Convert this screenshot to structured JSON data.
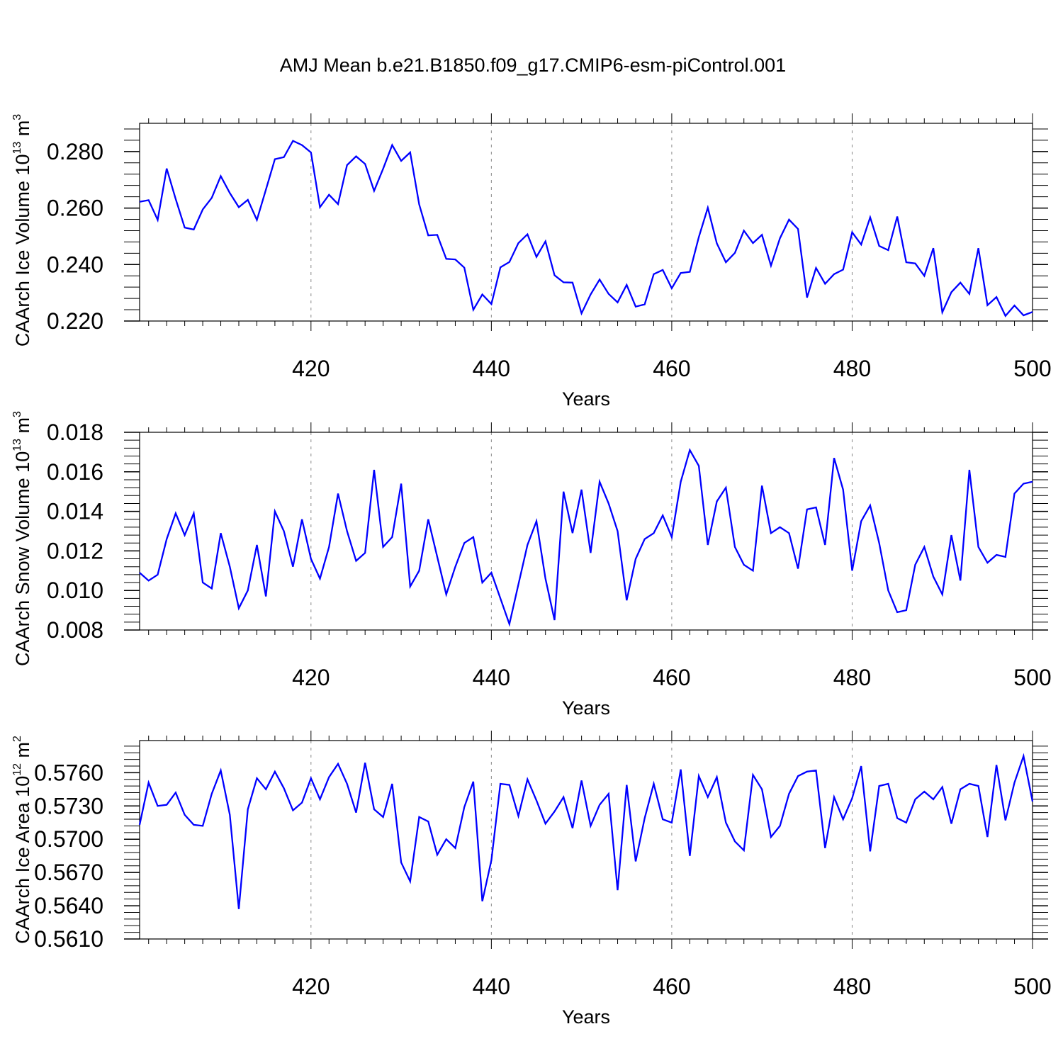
{
  "chart_data": {
    "type": "line",
    "title": "AMJ Mean b.e21.B1850.f09_g17.CMIP6-esm-piControl.001",
    "x_start": 401,
    "x_end": 500,
    "series_color": "#0000ff",
    "grid": "vertical dashed at major ticks",
    "panels": [
      {
        "id": "ice-volume",
        "ylabel": "CAArch Ice Volume 10",
        "ylabel_exp": "13",
        "ylabel_unit": " m",
        "ylabel_unit_exp": "3",
        "xlabel": "Years",
        "ylim": [
          0.22,
          0.29
        ],
        "yticks": [
          0.22,
          0.24,
          0.26,
          0.28
        ],
        "ytick_labels": [
          "0.220",
          "0.240",
          "0.260",
          "0.280"
        ],
        "xticks": [
          420,
          440,
          460,
          480,
          500
        ],
        "xtick_labels": [
          "420",
          "440",
          "460",
          "480",
          "500"
        ],
        "values": [
          0.2622,
          0.2628,
          0.2558,
          0.274,
          0.2632,
          0.2531,
          0.2524,
          0.2595,
          0.2636,
          0.2713,
          0.2653,
          0.2603,
          0.2629,
          0.2558,
          0.2665,
          0.2773,
          0.278,
          0.2838,
          0.2823,
          0.2797,
          0.2603,
          0.2647,
          0.2614,
          0.2752,
          0.2783,
          0.2756,
          0.2661,
          0.2739,
          0.2823,
          0.2767,
          0.2797,
          0.2613,
          0.2503,
          0.2505,
          0.242,
          0.2418,
          0.2389,
          0.224,
          0.2294,
          0.226,
          0.239,
          0.2409,
          0.2476,
          0.2507,
          0.2427,
          0.2482,
          0.2362,
          0.2337,
          0.2336,
          0.2227,
          0.2294,
          0.2347,
          0.2296,
          0.2266,
          0.2328,
          0.2251,
          0.2259,
          0.2366,
          0.2381,
          0.2316,
          0.237,
          0.2374,
          0.2497,
          0.2601,
          0.2475,
          0.2408,
          0.2441,
          0.252,
          0.2476,
          0.2505,
          0.2396,
          0.2493,
          0.2559,
          0.2526,
          0.2283,
          0.2388,
          0.2332,
          0.2366,
          0.2382,
          0.2514,
          0.2471,
          0.2567,
          0.2466,
          0.2451,
          0.257,
          0.2408,
          0.2404,
          0.236,
          0.2458,
          0.2231,
          0.2302,
          0.2336,
          0.2296,
          0.2458,
          0.2256,
          0.2285,
          0.2218,
          0.2255,
          0.222,
          0.2232
        ]
      },
      {
        "id": "snow-volume",
        "ylabel": "CAArch Snow Volume 10",
        "ylabel_exp": "13",
        "ylabel_unit": " m",
        "ylabel_unit_exp": "3",
        "xlabel": "Years",
        "ylim": [
          0.008,
          0.018
        ],
        "yticks": [
          0.008,
          0.01,
          0.012,
          0.014,
          0.016,
          0.018
        ],
        "ytick_labels": [
          "0.008",
          "0.010",
          "0.012",
          "0.014",
          "0.016",
          "0.018"
        ],
        "xticks": [
          420,
          440,
          460,
          480,
          500
        ],
        "xtick_labels": [
          "420",
          "440",
          "460",
          "480",
          "500"
        ],
        "values": [
          0.0109,
          0.0105,
          0.0108,
          0.0126,
          0.0139,
          0.0128,
          0.0139,
          0.0104,
          0.0101,
          0.0129,
          0.0112,
          0.0091,
          0.01,
          0.0123,
          0.0097,
          0.014,
          0.013,
          0.0112,
          0.0136,
          0.0116,
          0.0106,
          0.0122,
          0.0149,
          0.013,
          0.0115,
          0.0119,
          0.0161,
          0.0122,
          0.0127,
          0.0154,
          0.0102,
          0.011,
          0.0136,
          0.0117,
          0.0098,
          0.0112,
          0.0124,
          0.0127,
          0.0104,
          0.0109,
          0.0096,
          0.0083,
          0.0103,
          0.0123,
          0.0135,
          0.0106,
          0.0085,
          0.015,
          0.0129,
          0.0151,
          0.0119,
          0.0155,
          0.0144,
          0.013,
          0.0095,
          0.0116,
          0.0126,
          0.0129,
          0.0138,
          0.0127,
          0.0155,
          0.0171,
          0.0163,
          0.0123,
          0.0145,
          0.0152,
          0.0122,
          0.0113,
          0.011,
          0.0153,
          0.0129,
          0.0132,
          0.0129,
          0.0111,
          0.0141,
          0.0142,
          0.0123,
          0.0167,
          0.0151,
          0.011,
          0.0135,
          0.0143,
          0.0124,
          0.01,
          0.0089,
          0.009,
          0.0113,
          0.0122,
          0.0107,
          0.0098,
          0.0128,
          0.0105,
          0.0161,
          0.0122,
          0.0114,
          0.0118,
          0.0117,
          0.0149,
          0.0154,
          0.0155
        ]
      },
      {
        "id": "ice-area",
        "ylabel": "CAArch Ice Area 10",
        "ylabel_exp": "12",
        "ylabel_unit": " m",
        "ylabel_unit_exp": "2",
        "xlabel": "Years",
        "ylim": [
          0.561,
          0.5789
        ],
        "yticks": [
          0.561,
          0.564,
          0.567,
          0.57,
          0.573,
          0.576
        ],
        "ytick_labels": [
          "0.5610",
          "0.5640",
          "0.5670",
          "0.5700",
          "0.5730",
          "0.5760"
        ],
        "xticks": [
          420,
          440,
          460,
          480,
          500
        ],
        "xtick_labels": [
          "420",
          "440",
          "460",
          "480",
          "500"
        ],
        "values": [
          0.5713,
          0.5751,
          0.573,
          0.5731,
          0.5742,
          0.5722,
          0.5713,
          0.5712,
          0.5741,
          0.5762,
          0.5722,
          0.5637,
          0.5727,
          0.5755,
          0.5745,
          0.5761,
          0.5746,
          0.5726,
          0.5733,
          0.5755,
          0.5736,
          0.5756,
          0.5768,
          0.575,
          0.5724,
          0.5769,
          0.5727,
          0.572,
          0.575,
          0.5679,
          0.5662,
          0.572,
          0.5716,
          0.5686,
          0.57,
          0.5692,
          0.5729,
          0.5752,
          0.5644,
          0.5681,
          0.575,
          0.5749,
          0.5721,
          0.5754,
          0.5735,
          0.5714,
          0.5725,
          0.5738,
          0.571,
          0.5753,
          0.5712,
          0.5731,
          0.5741,
          0.5654,
          0.5749,
          0.568,
          0.5719,
          0.575,
          0.5718,
          0.5715,
          0.5763,
          0.5685,
          0.5757,
          0.5738,
          0.5756,
          0.5715,
          0.5698,
          0.569,
          0.5758,
          0.5745,
          0.5702,
          0.5712,
          0.5741,
          0.5757,
          0.5761,
          0.5762,
          0.5692,
          0.5738,
          0.5718,
          0.5737,
          0.5766,
          0.5689,
          0.5748,
          0.575,
          0.5719,
          0.5715,
          0.5736,
          0.5743,
          0.5736,
          0.5747,
          0.5714,
          0.5745,
          0.575,
          0.5748,
          0.5702,
          0.5767,
          0.5717,
          0.5751,
          0.5775,
          0.5734
        ]
      }
    ]
  }
}
